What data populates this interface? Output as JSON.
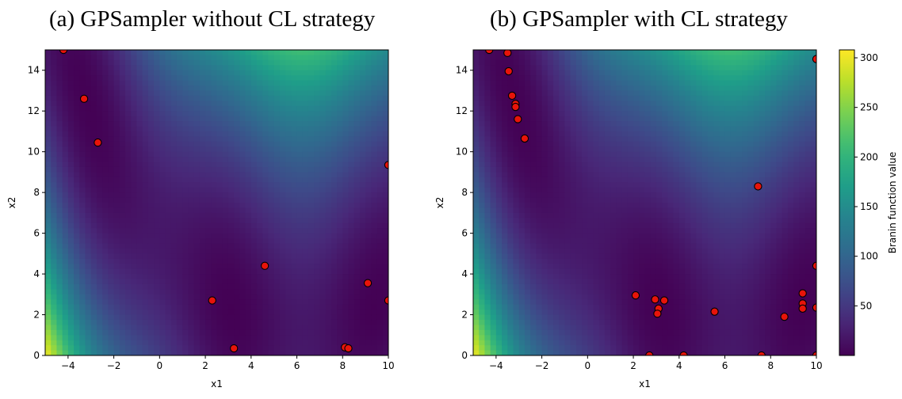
{
  "chart_data": {
    "type": "scatter",
    "background": "branin-heatmap",
    "colormap": "viridis",
    "colorbar": {
      "label": "Branin function value",
      "range": [
        0,
        308
      ],
      "ticks": [
        50,
        100,
        150,
        200,
        250,
        300
      ]
    },
    "panels": [
      {
        "title": "(a) GPSampler without CL strategy",
        "xlabel": "x1",
        "ylabel": "x2",
        "xlim": [
          -5,
          10
        ],
        "ylim": [
          0,
          15
        ],
        "xticks": [
          -4,
          -2,
          0,
          2,
          4,
          6,
          8,
          10
        ],
        "yticks": [
          0,
          2,
          4,
          6,
          8,
          10,
          12,
          14
        ],
        "points": [
          [
            -4.2,
            15.0
          ],
          [
            -3.3,
            12.6
          ],
          [
            -2.7,
            10.45
          ],
          [
            10.0,
            9.35
          ],
          [
            4.6,
            4.4
          ],
          [
            9.1,
            3.55
          ],
          [
            10.0,
            2.7
          ],
          [
            2.3,
            2.7
          ],
          [
            3.25,
            0.35
          ],
          [
            8.1,
            0.4
          ],
          [
            8.25,
            0.35
          ]
        ]
      },
      {
        "title": "(b) GPSampler with CL strategy",
        "xlabel": "x1",
        "ylabel": "x2",
        "xlim": [
          -5,
          10
        ],
        "ylim": [
          0,
          15
        ],
        "xticks": [
          -4,
          -2,
          0,
          2,
          4,
          6,
          8,
          10
        ],
        "yticks": [
          0,
          2,
          4,
          6,
          8,
          10,
          12,
          14
        ],
        "points": [
          [
            -4.3,
            15.0
          ],
          [
            -3.5,
            14.85
          ],
          [
            -3.45,
            13.95
          ],
          [
            -3.3,
            12.75
          ],
          [
            -3.15,
            12.35
          ],
          [
            -3.15,
            12.2
          ],
          [
            -3.05,
            11.6
          ],
          [
            -2.75,
            10.65
          ],
          [
            10.0,
            14.55
          ],
          [
            7.45,
            8.3
          ],
          [
            10.0,
            4.4
          ],
          [
            2.1,
            2.95
          ],
          [
            2.95,
            2.75
          ],
          [
            3.35,
            2.7
          ],
          [
            3.1,
            2.3
          ],
          [
            3.05,
            2.05
          ],
          [
            5.55,
            2.15
          ],
          [
            8.6,
            1.9
          ],
          [
            9.4,
            3.05
          ],
          [
            9.4,
            2.55
          ],
          [
            9.4,
            2.3
          ],
          [
            10.0,
            2.35
          ],
          [
            2.7,
            0.0
          ],
          [
            4.2,
            0.0
          ],
          [
            7.6,
            0.0
          ],
          [
            10.0,
            0.0
          ]
        ]
      }
    ]
  }
}
